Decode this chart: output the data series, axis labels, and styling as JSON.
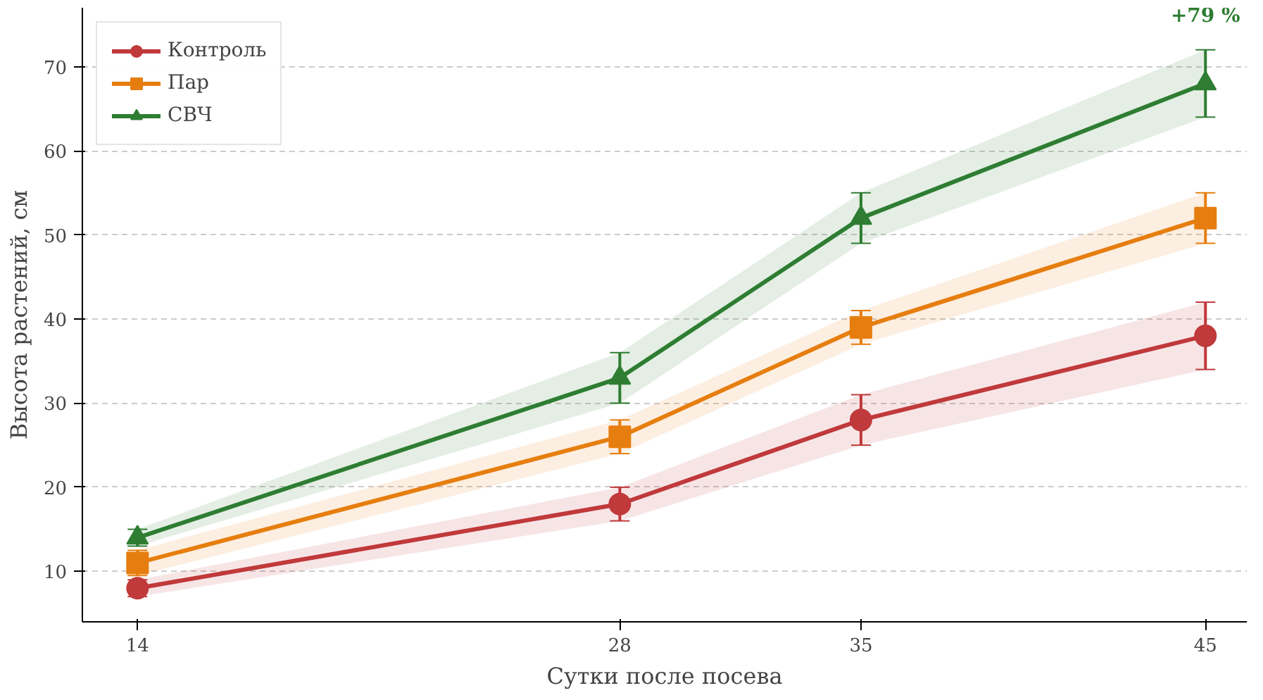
{
  "chart_data": {
    "type": "line",
    "xlabel": "Сутки после посева",
    "ylabel": "Высота растений, см",
    "x": [
      14,
      28,
      35,
      45
    ],
    "xlim": [
      12.4,
      46.2
    ],
    "xticks": [
      14,
      28,
      35,
      45
    ],
    "ylim": [
      4,
      77
    ],
    "yticks": [
      10,
      20,
      30,
      40,
      50,
      60,
      70
    ],
    "grid": "y",
    "legend": "top left",
    "series": [
      {
        "name": "Контроль",
        "color": "#c0393b",
        "marker": "circle",
        "values": [
          8,
          18,
          28,
          38
        ],
        "errors": [
          1,
          2,
          3,
          4
        ],
        "lower": [
          7,
          16,
          25,
          34
        ],
        "upper": [
          9,
          20,
          31,
          42
        ]
      },
      {
        "name": "Пар",
        "color": "#e67e0f",
        "marker": "square",
        "values": [
          11,
          26,
          39,
          52
        ],
        "errors": [
          1.5,
          2,
          2,
          3
        ],
        "lower": [
          9.5,
          24,
          37,
          49
        ],
        "upper": [
          12.5,
          28,
          41,
          55
        ]
      },
      {
        "name": "СВЧ",
        "color": "#2e7d32",
        "marker": "triangle",
        "values": [
          14,
          33,
          52,
          68
        ],
        "errors": [
          1,
          3,
          3,
          4
        ],
        "lower": [
          13,
          30,
          49,
          64
        ],
        "upper": [
          15,
          36,
          55,
          72
        ]
      }
    ],
    "annotations": [
      "+79 %"
    ]
  }
}
